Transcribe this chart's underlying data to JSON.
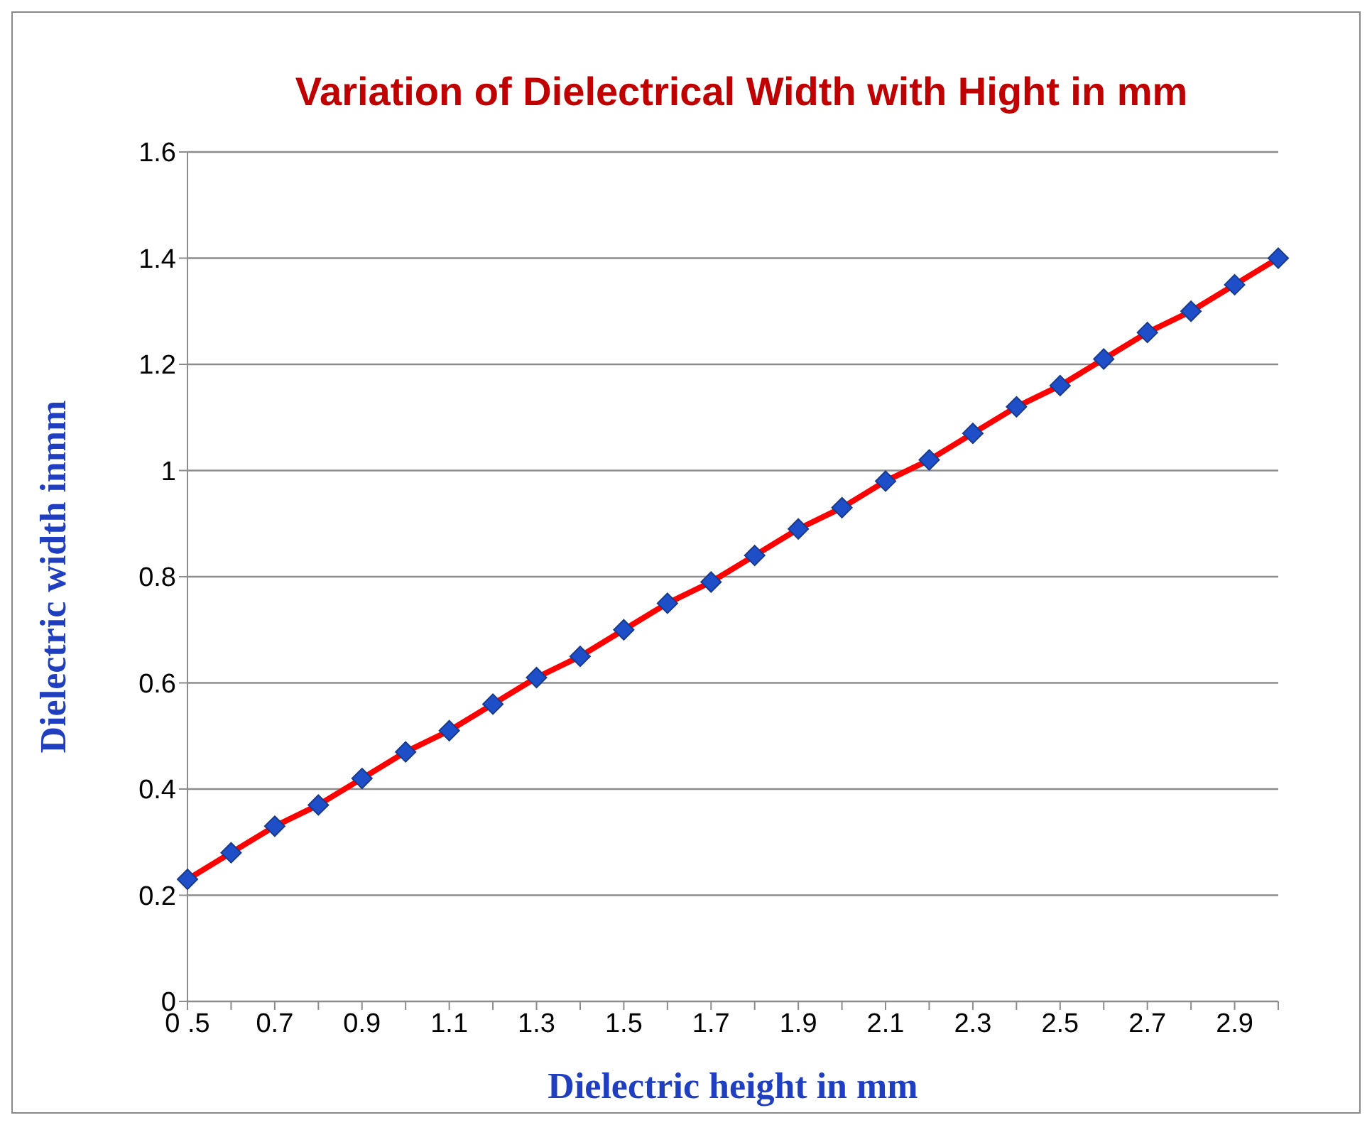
{
  "chart_data": {
    "type": "line",
    "title": "Variation of Dielectrical Width with Hight in mm",
    "xlabel": "Dielectric height in mm",
    "ylabel": "Dielectric width inmm",
    "categories": [
      "0 .5",
      null,
      "0.7",
      null,
      "0.9",
      null,
      "1.1",
      null,
      "1.3",
      null,
      "1.5",
      null,
      "1.7",
      null,
      "1.9",
      null,
      "2.1",
      null,
      "2.3",
      null,
      "2.5",
      null,
      "2.7",
      null,
      "2.9",
      null
    ],
    "series": [
      {
        "color": "#ff0000",
        "colors": [
          "#1f4fc8",
          "#1f4fc8",
          "#1f4fc8",
          "#1f4fc8",
          "#1f4fc8",
          "#1f4fc8",
          "#1f4fc8",
          "#1f4fc8",
          "#1f4fc8",
          "#1f4fc8",
          "#1f4fc8",
          "#1f4fc8",
          "#1f4fc8",
          "#1f4fc8",
          "#1f4fc8",
          "#1f4fc8",
          "#1f4fc8",
          "#1f4fc8",
          "#1f4fc8",
          "#1f4fc8",
          "#1f4fc8",
          "#1f4fc8",
          "#1f4fc8",
          "#1f4fc8",
          "#1f4fc8",
          "#1f4fc8"
        ],
        "values": [
          0.23,
          0.28,
          0.33,
          0.37,
          0.42,
          0.47,
          0.51,
          0.56,
          0.61,
          0.65,
          0.7,
          0.75,
          0.79,
          0.84,
          0.89,
          0.93,
          0.98,
          1.02,
          1.07,
          1.12,
          1.16,
          1.21,
          1.26,
          1.3,
          1.35,
          1.4
        ]
      }
    ],
    "ylim": [
      0,
      1.6
    ],
    "yticks": [
      0,
      0.2,
      0.4,
      0.6,
      0.8,
      1,
      1.2,
      1.4,
      1.6
    ],
    "grid": "y",
    "marker": "diamond",
    "line_style": "solid"
  }
}
